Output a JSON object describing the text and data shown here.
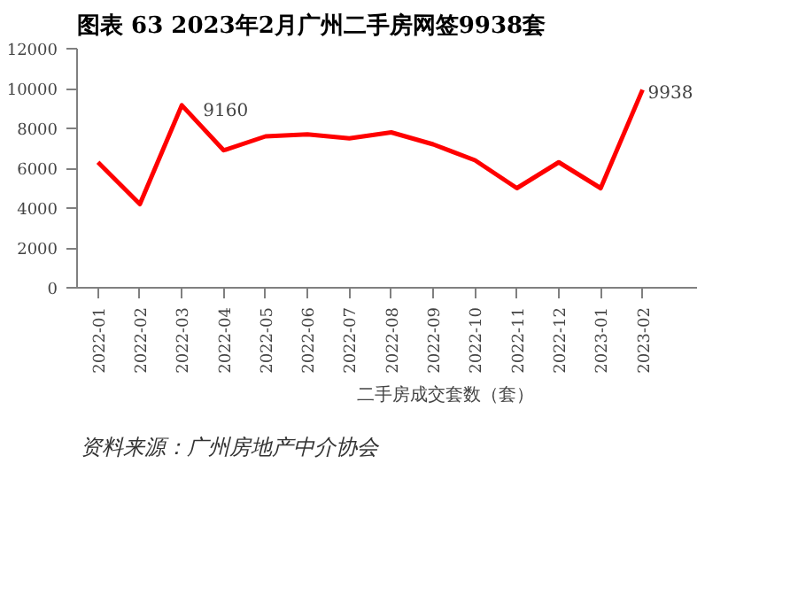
{
  "chart_data": {
    "type": "line",
    "title": "图表 63   2023年2月广州二手房网签9938套",
    "categories": [
      "2022-01",
      "2022-02",
      "2022-03",
      "2022-04",
      "2022-05",
      "2022-06",
      "2022-07",
      "2022-08",
      "2022-09",
      "2022-10",
      "2022-11",
      "2022-12",
      "2023-01",
      "2023-02"
    ],
    "series": [
      {
        "name": "二手房成交套数（套）",
        "color": "#ff0000",
        "values": [
          6300,
          4200,
          9160,
          6900,
          7600,
          7700,
          7500,
          7800,
          7200,
          6400,
          5000,
          6300,
          5000,
          9938
        ],
        "value_labels": [
          null,
          null,
          "9160",
          null,
          null,
          null,
          null,
          null,
          null,
          null,
          null,
          null,
          null,
          "9938"
        ]
      }
    ],
    "ylim": [
      0,
      12000
    ],
    "yticks": [
      0,
      2000,
      4000,
      6000,
      8000,
      10000,
      12000
    ],
    "grid": false,
    "legend": "bottom",
    "marker": "none",
    "line_style": "solid",
    "annotations": [
      "资料来源：广州房地产中介协会"
    ]
  }
}
